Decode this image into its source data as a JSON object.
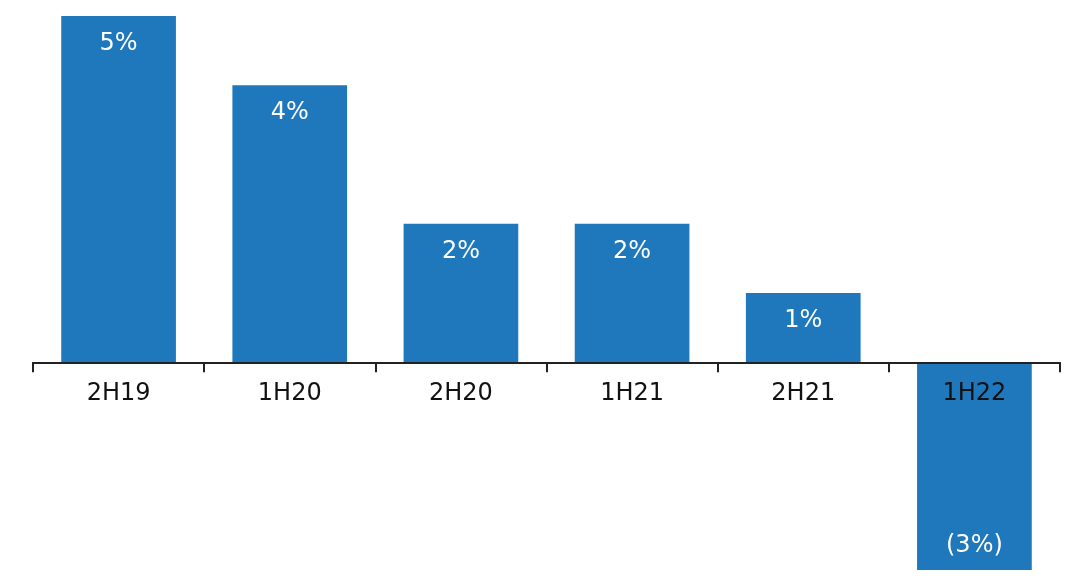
{
  "chart_data": {
    "type": "bar",
    "categories": [
      "2H19",
      "1H20",
      "2H20",
      "1H21",
      "2H21",
      "1H22"
    ],
    "values": [
      5,
      4,
      2,
      2,
      1,
      -3
    ],
    "color": "#1f77bc",
    "value_labels": [
      "5%",
      "4%",
      "2%",
      "2%",
      "1%",
      "(3%)"
    ]
  }
}
